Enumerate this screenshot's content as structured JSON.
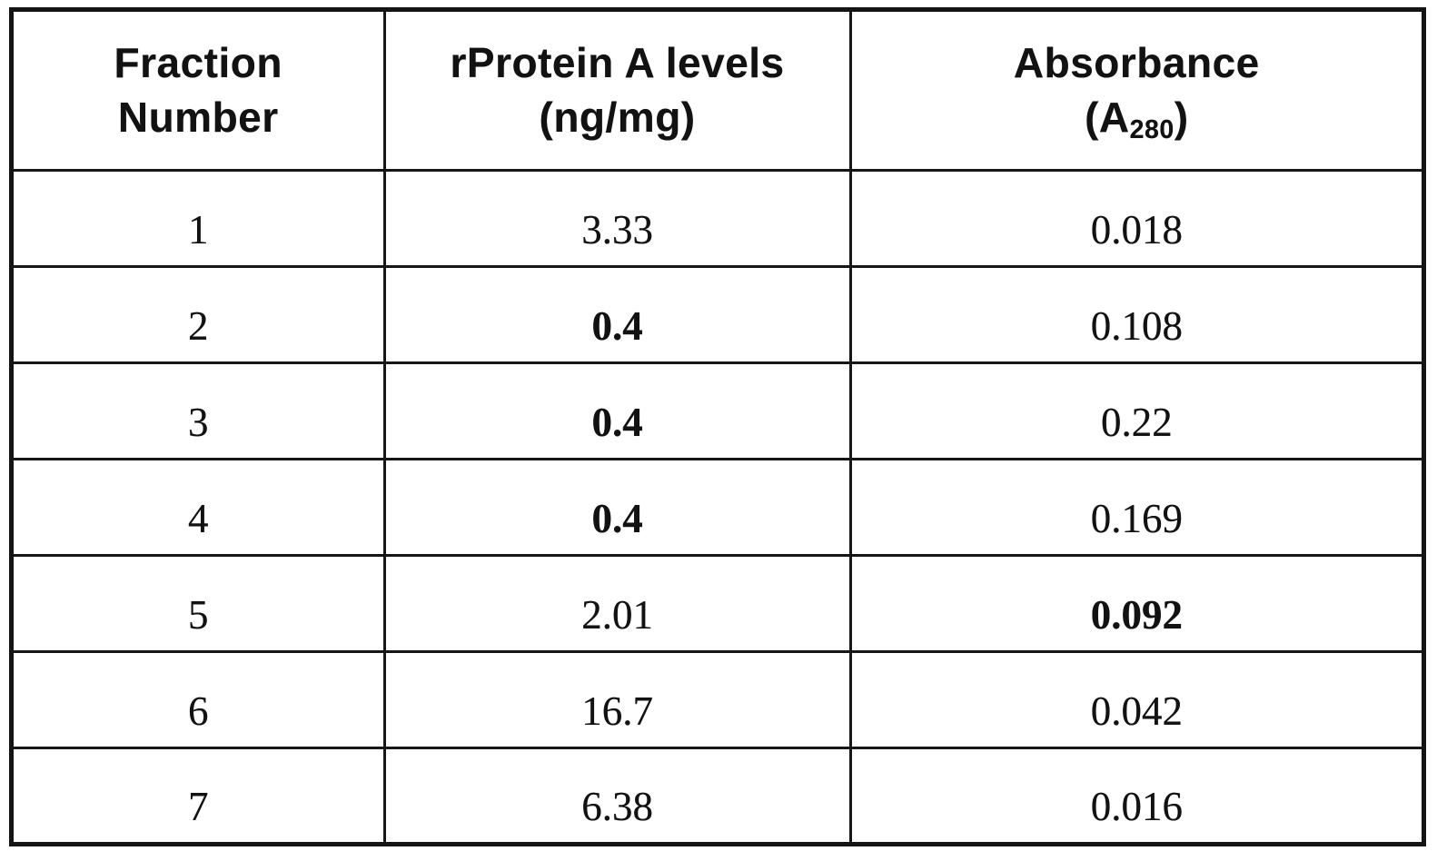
{
  "document": {
    "type": "scanned-table",
    "colors": {
      "ink": "#121212",
      "paper": "#ffffff"
    }
  },
  "table": {
    "headers": [
      {
        "line1": "Fraction",
        "line2": "Number"
      },
      {
        "line1": "rProtein A levels",
        "line2": "(ng/mg)"
      },
      {
        "line1": "Absorbance",
        "line2_pre": "(A",
        "line2_sub": "280",
        "line2_post": ")"
      }
    ],
    "rows": [
      {
        "fraction": "1",
        "protein": "3.33",
        "absorbance": "0.018"
      },
      {
        "fraction": "2",
        "protein": "0.4",
        "absorbance": "0.108"
      },
      {
        "fraction": "3",
        "protein": "0.4",
        "absorbance": "0.22"
      },
      {
        "fraction": "4",
        "protein": "0.4",
        "absorbance": "0.169"
      },
      {
        "fraction": "5",
        "protein": "2.01",
        "absorbance": "0.092"
      },
      {
        "fraction": "6",
        "protein": "16.7",
        "absorbance": "0.042"
      },
      {
        "fraction": "7",
        "protein": "6.38",
        "absorbance": "0.016"
      }
    ],
    "emphasis": {
      "bold_protein_rows": [
        2,
        3,
        4
      ],
      "bold_absorbance_rows": [
        5
      ]
    }
  }
}
